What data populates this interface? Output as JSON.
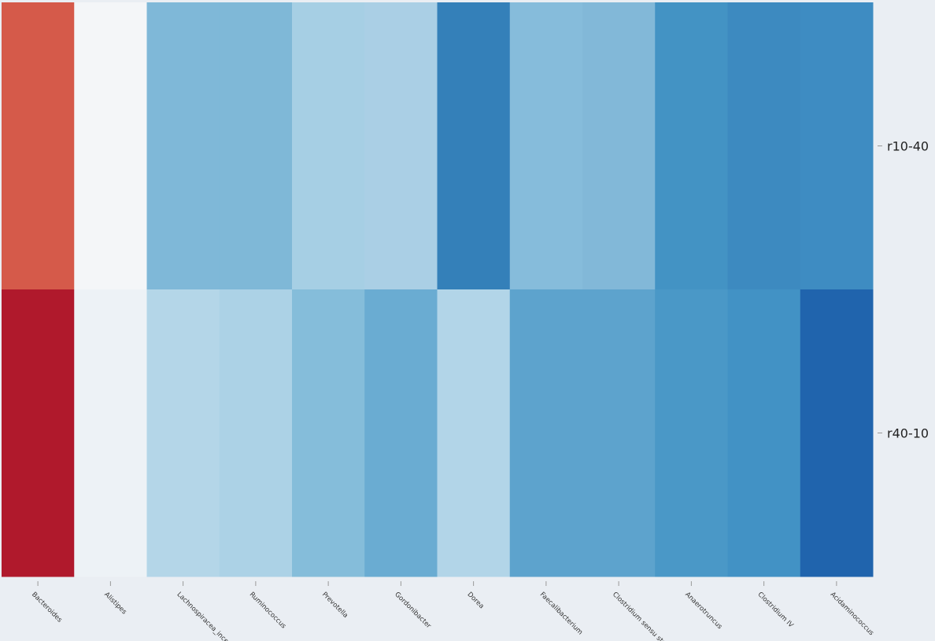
{
  "chart_data": {
    "type": "heatmap",
    "title": "",
    "xlabel": "",
    "ylabel": "",
    "colormap": "RdBu_r (diverging)",
    "x_categories": [
      "Bacteroides",
      "Alistipes",
      "Lachnospiracea_incertae_sedis",
      "Ruminococcus",
      "Prevotella",
      "Gordonibacter",
      "Dorea",
      "Faecalibacterium",
      "Clostridium sensu stricto",
      "Anaerotruncus",
      "Clostridium IV",
      "Acidaminococcus"
    ],
    "y_categories": [
      "r10-40",
      "r40-10"
    ],
    "cell_colors": [
      [
        "#d55a4a",
        "#f4f6f8",
        "#7fb8d8",
        "#7fb8d7",
        "#a6cfe4",
        "#aacfe5",
        "#3480b9",
        "#86bcdb",
        "#82b8d8",
        "#4393c4",
        "#3d8ac0",
        "#3e8cc2"
      ],
      [
        "#b0192c",
        "#edf2f6",
        "#b4d6e8",
        "#acd2e6",
        "#85bdda",
        "#6aacd2",
        "#b2d5e8",
        "#5da3cd",
        "#5da3cd",
        "#4a98c7",
        "#4292c5",
        "#2064ad"
      ]
    ],
    "background": "#eaeef3"
  }
}
